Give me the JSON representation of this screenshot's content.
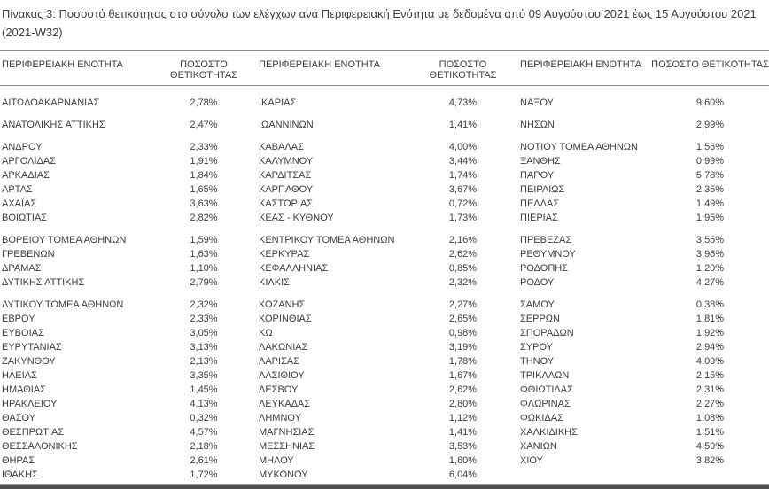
{
  "title": "Πίνακας 3: Ποσοστό θετικότητας στο σύνολο των ελέγχων ανά Περιφερειακή Ενότητα με δεδομένα από 09 Αυγούστου 2021 έως 15 Αυγούστου 2021 (2021-W32)",
  "colors": {
    "text": "#3d3d3d",
    "rule_gray": "#8c8c8c",
    "bottom_bar": "#4d4d4d",
    "background": "#ffffff"
  },
  "table": {
    "region_header": "ΠΕΡΙΦΕΡΕΙΑΚΗ ΕΝΟΤΗΤΑ",
    "positivity_header": "ΠΟΣΟΣΤΟ ΘΕΤΙΚΟΤΗΤΑΣ",
    "rows": [
      {
        "gap_after": true,
        "cells": [
          {
            "region": "ΑΙΤΩΛΟΑΚΑΡΝΑΝΙΑΣ",
            "value": "2,78%"
          },
          {
            "region": "ΙΚΑΡΙΑΣ",
            "value": "4,73%"
          },
          {
            "region": "ΝΑΞΟΥ",
            "value": "9,60%"
          }
        ]
      },
      {
        "gap_after": true,
        "cells": [
          {
            "region": "ΑΝΑΤΟΛΙΚΗΣ ΑΤΤΙΚΗΣ",
            "value": "2,47%"
          },
          {
            "region": "ΙΩΑΝΝΙΝΩΝ",
            "value": "1,41%"
          },
          {
            "region": "ΝΗΣΩΝ",
            "value": "2,99%"
          }
        ]
      },
      {
        "gap_after": false,
        "cells": [
          {
            "region": "ΑΝΔΡΟΥ",
            "value": "2,33%"
          },
          {
            "region": "ΚΑΒΑΛΑΣ",
            "value": "4,00%"
          },
          {
            "region": "ΝΟΤΙΟΥ ΤΟΜΕΑ ΑΘΗΝΩΝ",
            "value": "1,56%"
          }
        ]
      },
      {
        "gap_after": false,
        "cells": [
          {
            "region": "ΑΡΓΟΛΙΔΑΣ",
            "value": "1,91%"
          },
          {
            "region": "ΚΑΛΥΜΝΟΥ",
            "value": "3,44%"
          },
          {
            "region": "ΞΑΝΘΗΣ",
            "value": "0,99%"
          }
        ]
      },
      {
        "gap_after": false,
        "cells": [
          {
            "region": "ΑΡΚΑΔΙΑΣ",
            "value": "1,84%"
          },
          {
            "region": "ΚΑΡΔΙΤΣΑΣ",
            "value": "1,74%"
          },
          {
            "region": "ΠΑΡΟΥ",
            "value": "5,78%"
          }
        ]
      },
      {
        "gap_after": false,
        "cells": [
          {
            "region": "ΑΡΤΑΣ",
            "value": "1,65%"
          },
          {
            "region": "ΚΑΡΠΑΘΟΥ",
            "value": "3,67%"
          },
          {
            "region": "ΠΕΙΡΑΙΩΣ",
            "value": "2,35%"
          }
        ]
      },
      {
        "gap_after": false,
        "cells": [
          {
            "region": "ΑΧΑΪΑΣ",
            "value": "3,63%"
          },
          {
            "region": "ΚΑΣΤΟΡΙΑΣ",
            "value": "0,72%"
          },
          {
            "region": "ΠΕΛΛΑΣ",
            "value": "1,49%"
          }
        ]
      },
      {
        "gap_after": true,
        "cells": [
          {
            "region": "ΒΟΙΩΤΙΑΣ",
            "value": "2,82%"
          },
          {
            "region": "ΚΕΑΣ - ΚΥΘΝΟΥ",
            "value": "1,73%"
          },
          {
            "region": "ΠΙΕΡΙΑΣ",
            "value": "1,95%"
          }
        ]
      },
      {
        "gap_after": false,
        "cells": [
          {
            "region": "ΒΟΡΕΙΟΥ ΤΟΜΕΑ ΑΘΗΝΩΝ",
            "value": "1,59%"
          },
          {
            "region": "ΚΕΝΤΡΙΚΟΥ ΤΟΜΕΑ ΑΘΗΝΩΝ",
            "value": "2,16%"
          },
          {
            "region": "ΠΡΕΒΕΖΑΣ",
            "value": "3,55%"
          }
        ]
      },
      {
        "gap_after": false,
        "cells": [
          {
            "region": "ΓΡΕΒΕΝΩΝ",
            "value": "1,63%"
          },
          {
            "region": "ΚΕΡΚΥΡΑΣ",
            "value": "2,62%"
          },
          {
            "region": "ΡΕΘΥΜΝΟΥ",
            "value": "3,96%"
          }
        ]
      },
      {
        "gap_after": false,
        "cells": [
          {
            "region": "ΔΡΑΜΑΣ",
            "value": "1,10%"
          },
          {
            "region": "ΚΕΦΑΛΛΗΝΙΑΣ",
            "value": "0,85%"
          },
          {
            "region": "ΡΟΔΟΠΗΣ",
            "value": "1,20%"
          }
        ]
      },
      {
        "gap_after": true,
        "cells": [
          {
            "region": "ΔΥΤΙΚΗΣ ΑΤΤΙΚΗΣ",
            "value": "2,79%"
          },
          {
            "region": "ΚΙΛΚΙΣ",
            "value": "2,32%"
          },
          {
            "region": "ΡΟΔΟΥ",
            "value": "4,27%"
          }
        ]
      },
      {
        "gap_after": false,
        "cells": [
          {
            "region": "ΔΥΤΙΚΟΥ ΤΟΜΕΑ ΑΘΗΝΩΝ",
            "value": "2,32%"
          },
          {
            "region": "ΚΟΖΑΝΗΣ",
            "value": "2,27%"
          },
          {
            "region": "ΣΑΜΟΥ",
            "value": "0,38%"
          }
        ]
      },
      {
        "gap_after": false,
        "cells": [
          {
            "region": "ΕΒΡΟΥ",
            "value": "2,33%"
          },
          {
            "region": "ΚΟΡΙΝΘΙΑΣ",
            "value": "2,65%"
          },
          {
            "region": "ΣΕΡΡΩΝ",
            "value": "1,81%"
          }
        ]
      },
      {
        "gap_after": false,
        "cells": [
          {
            "region": "ΕΥΒΟΙΑΣ",
            "value": "3,05%"
          },
          {
            "region": "ΚΩ",
            "value": "0,98%"
          },
          {
            "region": "ΣΠΟΡΑΔΩΝ",
            "value": "1,92%"
          }
        ]
      },
      {
        "gap_after": false,
        "cells": [
          {
            "region": "ΕΥΡΥΤΑΝΙΑΣ",
            "value": "3,13%"
          },
          {
            "region": "ΛΑΚΩΝΙΑΣ",
            "value": "3,19%"
          },
          {
            "region": "ΣΥΡΟΥ",
            "value": "2,94%"
          }
        ]
      },
      {
        "gap_after": false,
        "cells": [
          {
            "region": "ΖΑΚΥΝΘΟΥ",
            "value": "2,13%"
          },
          {
            "region": "ΛΑΡΙΣΑΣ",
            "value": "1,78%"
          },
          {
            "region": "ΤΗΝΟΥ",
            "value": "4,09%"
          }
        ]
      },
      {
        "gap_after": false,
        "cells": [
          {
            "region": "ΗΛΕΙΑΣ",
            "value": "3,35%"
          },
          {
            "region": "ΛΑΣΙΘΙΟΥ",
            "value": "1,67%"
          },
          {
            "region": "ΤΡΙΚΑΛΩΝ",
            "value": "2,15%"
          }
        ]
      },
      {
        "gap_after": false,
        "cells": [
          {
            "region": "ΗΜΑΘΙΑΣ",
            "value": "1,45%"
          },
          {
            "region": "ΛΕΣΒΟΥ",
            "value": "2,62%"
          },
          {
            "region": "ΦΘΙΩΤΙΔΑΣ",
            "value": "2,31%"
          }
        ]
      },
      {
        "gap_after": false,
        "cells": [
          {
            "region": "ΗΡΑΚΛΕΙΟΥ",
            "value": "4,13%"
          },
          {
            "region": "ΛΕΥΚΑΔΑΣ",
            "value": "2,80%"
          },
          {
            "region": "ΦΛΩΡΙΝΑΣ",
            "value": "2,27%"
          }
        ]
      },
      {
        "gap_after": false,
        "cells": [
          {
            "region": "ΘΑΣΟΥ",
            "value": "0,32%"
          },
          {
            "region": "ΛΗΜΝΟΥ",
            "value": "1,12%"
          },
          {
            "region": "ΦΩΚΙΔΑΣ",
            "value": "1,08%"
          }
        ]
      },
      {
        "gap_after": false,
        "cells": [
          {
            "region": "ΘΕΣΠΡΩΤΙΑΣ",
            "value": "4,57%"
          },
          {
            "region": "ΜΑΓΝΗΣΙΑΣ",
            "value": "1,41%"
          },
          {
            "region": "ΧΑΛΚΙΔΙΚΗΣ",
            "value": "1,51%"
          }
        ]
      },
      {
        "gap_after": false,
        "cells": [
          {
            "region": "ΘΕΣΣΑΛΟΝΙΚΗΣ",
            "value": "2,18%"
          },
          {
            "region": "ΜΕΣΣΗΝΙΑΣ",
            "value": "3,53%"
          },
          {
            "region": "ΧΑΝΙΩΝ",
            "value": "4,59%"
          }
        ]
      },
      {
        "gap_after": false,
        "cells": [
          {
            "region": "ΘΗΡΑΣ",
            "value": "2,61%"
          },
          {
            "region": "ΜΗΛΟΥ",
            "value": "1,60%"
          },
          {
            "region": "ΧΙΟΥ",
            "value": "3,82%"
          }
        ]
      },
      {
        "gap_after": false,
        "cells": [
          {
            "region": "ΙΘΑΚΗΣ",
            "value": "1,72%"
          },
          {
            "region": "ΜΥΚΟΝΟΥ",
            "value": "6,04%"
          },
          {
            "region": "",
            "value": ""
          }
        ]
      }
    ]
  }
}
